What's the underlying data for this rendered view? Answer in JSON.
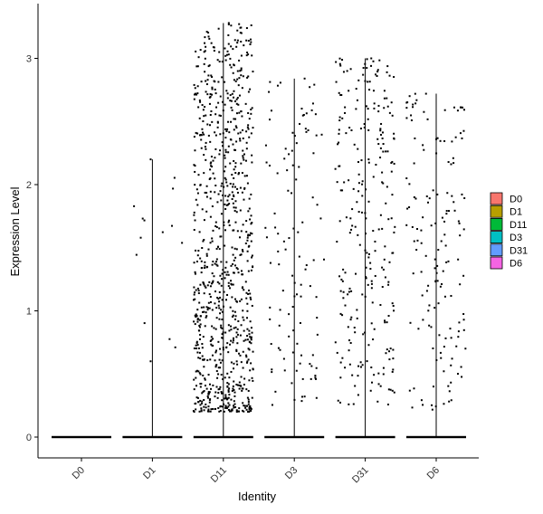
{
  "chart_data": {
    "type": "violin-jitter",
    "title": "",
    "xlabel": "Identity",
    "ylabel": "Expression Level",
    "ylim": [
      0,
      3.3
    ],
    "y_ticks": [
      0,
      1,
      2,
      3
    ],
    "grid": false,
    "legend_position": "right",
    "categories": [
      "D0",
      "D1",
      "D11",
      "D3",
      "D31",
      "D6"
    ],
    "colors": {
      "D0": "#F8766D",
      "D1": "#B79F00",
      "D11": "#00BA38",
      "D3": "#00BFC4",
      "D31": "#619CFF",
      "D6": "#F564E3"
    },
    "series": [
      {
        "name": "D0",
        "max": 0.0,
        "n_expressing": 0,
        "expr_range": [
          0,
          0
        ],
        "zero_fraction": 1.0
      },
      {
        "name": "D1",
        "max": 2.2,
        "n_expressing": 14,
        "expr_range": [
          0.4,
          2.2
        ],
        "zero_fraction": 0.97
      },
      {
        "name": "D11",
        "max": 3.28,
        "n_expressing": 900,
        "expr_range": [
          0.2,
          3.28
        ],
        "zero_fraction": 0.5
      },
      {
        "name": "D3",
        "max": 2.84,
        "n_expressing": 110,
        "expr_range": [
          0.25,
          2.84
        ],
        "zero_fraction": 0.85
      },
      {
        "name": "D31",
        "max": 3.0,
        "n_expressing": 260,
        "expr_range": [
          0.25,
          3.0
        ],
        "zero_fraction": 0.75
      },
      {
        "name": "D6",
        "max": 2.72,
        "n_expressing": 150,
        "expr_range": [
          0.2,
          2.72
        ],
        "zero_fraction": 0.82
      }
    ]
  }
}
